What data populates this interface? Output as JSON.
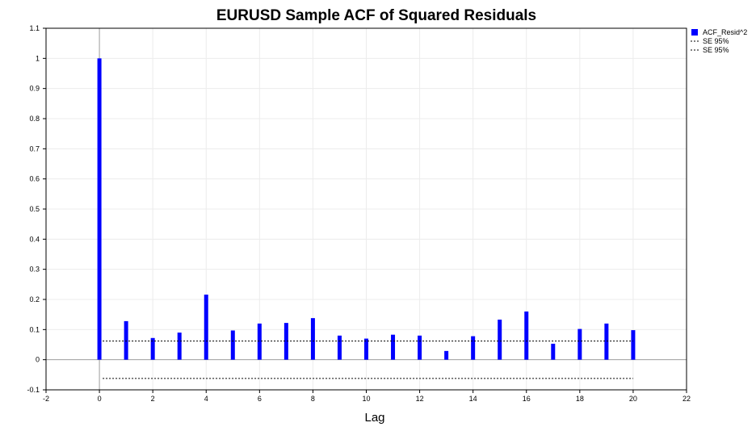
{
  "chart_data": {
    "type": "bar",
    "title": "EURUSD Sample ACF of Squared Residuals",
    "xlabel": "Lag",
    "ylabel": "",
    "xlim": [
      -2,
      22
    ],
    "ylim": [
      -0.1,
      1.1
    ],
    "xticks": [
      -2,
      0,
      2,
      4,
      6,
      8,
      10,
      12,
      14,
      16,
      18,
      20,
      22
    ],
    "yticks": [
      -0.1,
      0,
      0.1,
      0.2,
      0.3,
      0.4,
      0.5,
      0.6,
      0.7,
      0.8,
      0.9,
      1,
      1.1
    ],
    "xtick_labels": [
      "-2",
      "0",
      "2",
      "4",
      "6",
      "8",
      "10",
      "12",
      "14",
      "16",
      "18",
      "20",
      "22"
    ],
    "ytick_labels": [
      "-0.1",
      "0",
      "0.1",
      "0.2",
      "0.3",
      "0.4",
      "0.5",
      "0.6",
      "0.7",
      "0.8",
      "0.9",
      "1",
      "1.1"
    ],
    "grid": true,
    "legend_position": "top-right, outside plot",
    "series": [
      {
        "name": "ACF_Resid^2",
        "kind": "bar",
        "color": "#0000ff",
        "x": [
          0,
          1,
          2,
          3,
          4,
          5,
          6,
          7,
          8,
          9,
          10,
          11,
          12,
          13,
          14,
          15,
          16,
          17,
          18,
          19,
          20
        ],
        "values": [
          1.0,
          0.128,
          0.072,
          0.09,
          0.216,
          0.097,
          0.12,
          0.122,
          0.138,
          0.08,
          0.07,
          0.083,
          0.08,
          0.029,
          0.078,
          0.133,
          0.16,
          0.053,
          0.102,
          0.12,
          0.098
        ]
      },
      {
        "name": "SE 95%",
        "kind": "dashed-line",
        "color": "#000000",
        "x": [
          0,
          20
        ],
        "values": [
          0.062,
          0.062
        ]
      },
      {
        "name": "SE 95%",
        "kind": "dashed-line",
        "color": "#000000",
        "x": [
          0,
          20
        ],
        "values": [
          -0.062,
          -0.062
        ]
      }
    ]
  }
}
